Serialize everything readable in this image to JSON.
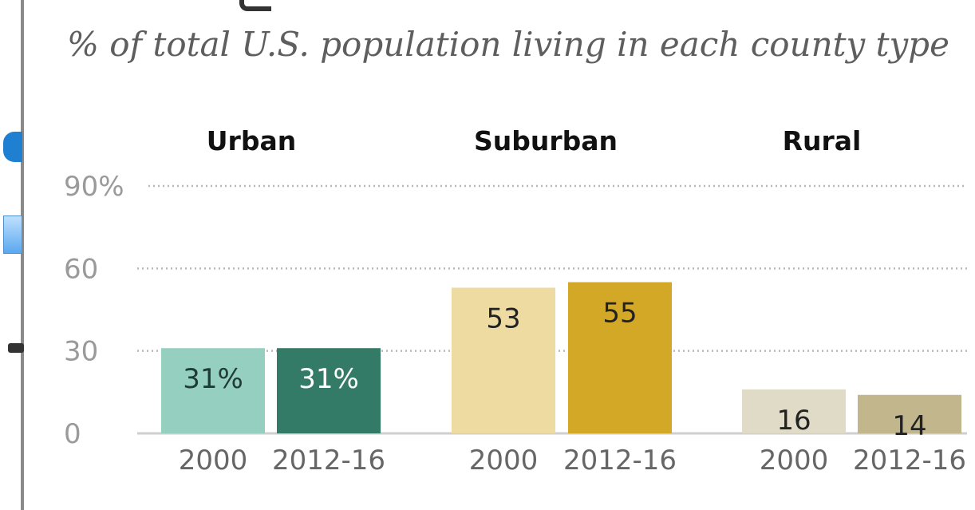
{
  "chart_data": {
    "type": "bar",
    "subtitle": "% of total U.S. population living in each county type",
    "yticks": [
      "90%",
      "60",
      "30",
      "0"
    ],
    "ytick_values": [
      90,
      60,
      30,
      0
    ],
    "ylim": [
      0,
      90
    ],
    "grid": true,
    "panels": [
      {
        "title": "Urban",
        "bars": [
          {
            "category": "2000",
            "value": 31,
            "label": "31%",
            "color": "#95cfc0",
            "label_color": "#1f3b35"
          },
          {
            "category": "2012-16",
            "value": 31,
            "label": "31%",
            "color": "#347b67",
            "label_color": "#ffffff"
          }
        ]
      },
      {
        "title": "Suburban",
        "bars": [
          {
            "category": "2000",
            "value": 53,
            "label": "53",
            "color": "#eddba2",
            "label_color": "#222222"
          },
          {
            "category": "2012-16",
            "value": 55,
            "label": "55",
            "color": "#d4a827",
            "label_color": "#222222"
          }
        ]
      },
      {
        "title": "Rural",
        "bars": [
          {
            "category": "2000",
            "value": 16,
            "label": "16",
            "color": "#e0dbc6",
            "label_color": "#222222"
          },
          {
            "category": "2012-16",
            "value": 14,
            "label": "14",
            "color": "#c2b68d",
            "label_color": "#222222"
          }
        ]
      }
    ]
  }
}
